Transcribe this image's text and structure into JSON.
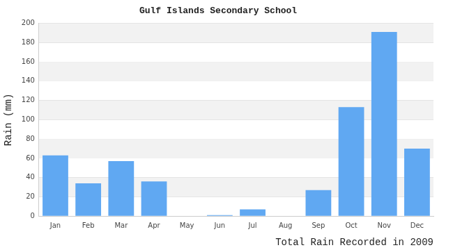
{
  "chart_data": {
    "type": "bar",
    "title": "Gulf Islands Secondary School",
    "xlabel": "Total Rain Recorded in 2009",
    "ylabel": "Rain (mm)",
    "categories": [
      "Jan",
      "Feb",
      "Mar",
      "Apr",
      "May",
      "Jun",
      "Jul",
      "Aug",
      "Sep",
      "Oct",
      "Nov",
      "Dec"
    ],
    "values": [
      63,
      34,
      57,
      36,
      0,
      1,
      7,
      0,
      27,
      113,
      191,
      70
    ],
    "color": "#60a8f2",
    "ylim": [
      0,
      200
    ],
    "yticks": [
      0,
      20,
      40,
      60,
      80,
      100,
      120,
      140,
      160,
      180,
      200
    ],
    "grid": true
  }
}
